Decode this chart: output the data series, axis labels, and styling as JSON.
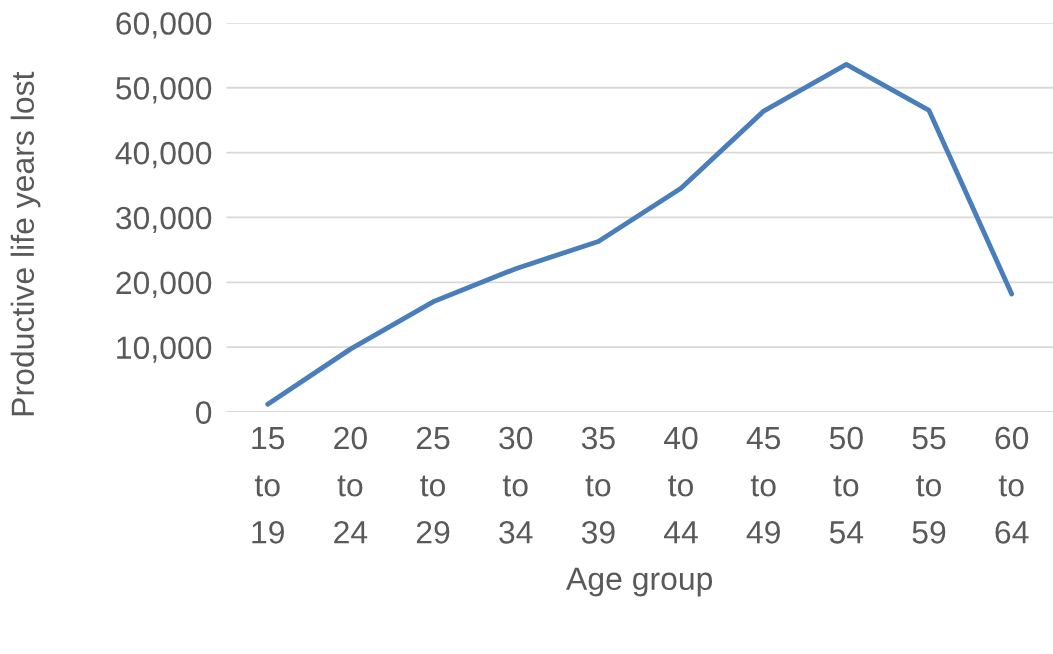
{
  "chart_data": {
    "type": "line",
    "xlabel": "Age group",
    "ylabel": "Productive life years lost",
    "categories": [
      "15\nto\n19",
      "20\nto\n24",
      "25\nto\n29",
      "30\nto\n34",
      "35\nto\n39",
      "40\nto\n44",
      "45\nto\n49",
      "50\nto\n54",
      "55\nto\n59",
      "60\nto\n64"
    ],
    "series": [
      {
        "color": "#4a7ebb",
        "values": [
          1200,
          9700,
          17000,
          22100,
          26300,
          34500,
          46400,
          53600,
          46500,
          18200
        ]
      }
    ],
    "ylim": [
      0,
      60000
    ],
    "yticks": [
      {
        "value": 0,
        "label": "0"
      },
      {
        "value": 10000,
        "label": "10,000"
      },
      {
        "value": 20000,
        "label": "20,000"
      },
      {
        "value": 30000,
        "label": "30,000"
      },
      {
        "value": 40000,
        "label": "40,000"
      },
      {
        "value": 50000,
        "label": "50,000"
      },
      {
        "value": 60000,
        "label": "60,000"
      }
    ],
    "grid": "y",
    "marker": "none",
    "line_style": "solid"
  }
}
